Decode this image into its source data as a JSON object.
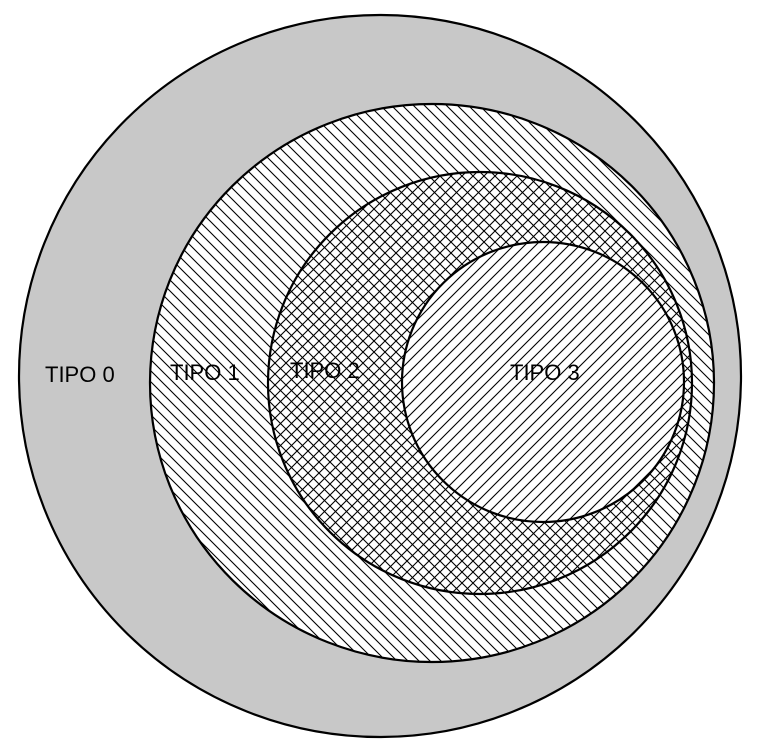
{
  "diagram": {
    "regions": [
      {
        "id": "tipo-0",
        "label": "TIPO 0",
        "fill": "solid-gray",
        "color": "#c8c8c8"
      },
      {
        "id": "tipo-1",
        "label": "TIPO 1",
        "fill": "diagonal-hatch-backslash",
        "color": "#000000"
      },
      {
        "id": "tipo-2",
        "label": "TIPO 2",
        "fill": "cross-hatch",
        "color": "#000000"
      },
      {
        "id": "tipo-3",
        "label": "TIPO 3",
        "fill": "diagonal-hatch-slash",
        "color": "#000000"
      }
    ]
  }
}
